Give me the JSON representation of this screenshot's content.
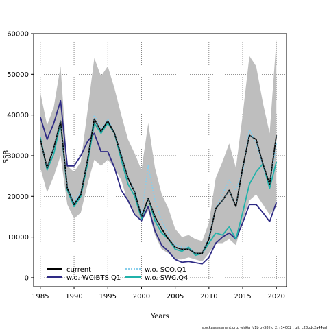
{
  "chart_data": {
    "type": "line",
    "xlabel": "Years",
    "ylabel": "SSB",
    "xlim": [
      1984,
      2021.5
    ],
    "ylim": [
      -2200,
      60000
    ],
    "x_ticks": [
      1985,
      1990,
      1995,
      2000,
      2005,
      2010,
      2015,
      2020
    ],
    "y_ticks": [
      0,
      10000,
      20000,
      30000,
      40000,
      50000,
      60000
    ],
    "grid": true,
    "grid_style": "dotted",
    "legend_position": "bottom-left",
    "x": [
      1985,
      1986,
      1987,
      1988,
      1989,
      1990,
      1991,
      1992,
      1993,
      1994,
      1995,
      1996,
      1997,
      1998,
      1999,
      2000,
      2001,
      2002,
      2003,
      2004,
      2005,
      2006,
      2007,
      2008,
      2009,
      2010,
      2011,
      2012,
      2013,
      2014,
      2015,
      2016,
      2017,
      2018,
      2019,
      2020
    ],
    "band": {
      "color": "#bebebe",
      "upper": [
        45500,
        37500,
        42000,
        52000,
        27500,
        26000,
        28500,
        41000,
        54000,
        49500,
        52000,
        46500,
        40000,
        34000,
        30500,
        26500,
        38000,
        27000,
        20500,
        17000,
        12000,
        10000,
        10500,
        9500,
        9000,
        13500,
        24500,
        28500,
        33000,
        27000,
        40000,
        54500,
        52000,
        43000,
        35500,
        58500
      ],
      "lower": [
        27000,
        21000,
        25000,
        30000,
        18000,
        14500,
        16000,
        23000,
        29000,
        27500,
        29000,
        27000,
        24000,
        18500,
        15500,
        14000,
        16500,
        10500,
        7000,
        6000,
        4500,
        4500,
        5000,
        4500,
        4000,
        6000,
        8500,
        8500,
        9500,
        8000,
        14000,
        19000,
        20500,
        18000,
        15500,
        17500
      ]
    },
    "series": [
      {
        "name": "current",
        "color": "#000000",
        "dash": "solid",
        "values": [
          34000,
          27000,
          32000,
          38500,
          22000,
          18000,
          20500,
          29000,
          39000,
          36000,
          38500,
          35500,
          30000,
          24500,
          21000,
          15000,
          19500,
          15000,
          12000,
          9500,
          7500,
          7000,
          7000,
          6000,
          6000,
          9500,
          17000,
          19000,
          21500,
          17500,
          27000,
          35000,
          34000,
          28000,
          23000,
          35000
        ]
      },
      {
        "name": "w.o. WCIBTS.Q1",
        "color": "#2e2a85",
        "dash": "solid",
        "values": [
          39500,
          34000,
          38000,
          43500,
          27500,
          27500,
          30000,
          33500,
          35500,
          31000,
          31000,
          27000,
          21500,
          19000,
          15500,
          14000,
          17500,
          11500,
          8000,
          6500,
          4500,
          3800,
          4000,
          3700,
          3400,
          5000,
          8500,
          10000,
          11000,
          9500,
          13500,
          18000,
          18000,
          16000,
          13800,
          18500
        ]
      },
      {
        "name": "w.o. SCO.Q1",
        "color": "#87ceeb",
        "dash": "dotted",
        "values": [
          34000,
          27000,
          32000,
          38500,
          22500,
          18500,
          21000,
          29000,
          40000,
          36500,
          39000,
          35500,
          30500,
          24500,
          21500,
          15500,
          27500,
          19000,
          14000,
          10500,
          8000,
          7500,
          7500,
          6000,
          6000,
          10000,
          17000,
          20500,
          24000,
          21500,
          26000,
          36500,
          33000,
          27500,
          22500,
          33000
        ]
      },
      {
        "name": "w.o. SWC.Q4",
        "color": "#20b2aa",
        "dash": "solid",
        "values": [
          34500,
          26500,
          30500,
          38000,
          21500,
          17500,
          20000,
          28000,
          38000,
          35500,
          38000,
          35500,
          29000,
          23000,
          20000,
          14500,
          19500,
          14000,
          11000,
          9500,
          7000,
          6500,
          7500,
          5500,
          6000,
          8500,
          11000,
          10500,
          12500,
          9500,
          16000,
          23000,
          26000,
          28000,
          22000,
          28500
        ]
      }
    ],
    "legend_order": [
      "current",
      "w.o. WCIBTS.Q1",
      "w.o. SCO.Q1",
      "w.o. SWC.Q4"
    ],
    "footnote": "stockassessment.org, whi6a fc1b ov38 hd 2, r14002 , git: c28bdc2a44ad"
  }
}
